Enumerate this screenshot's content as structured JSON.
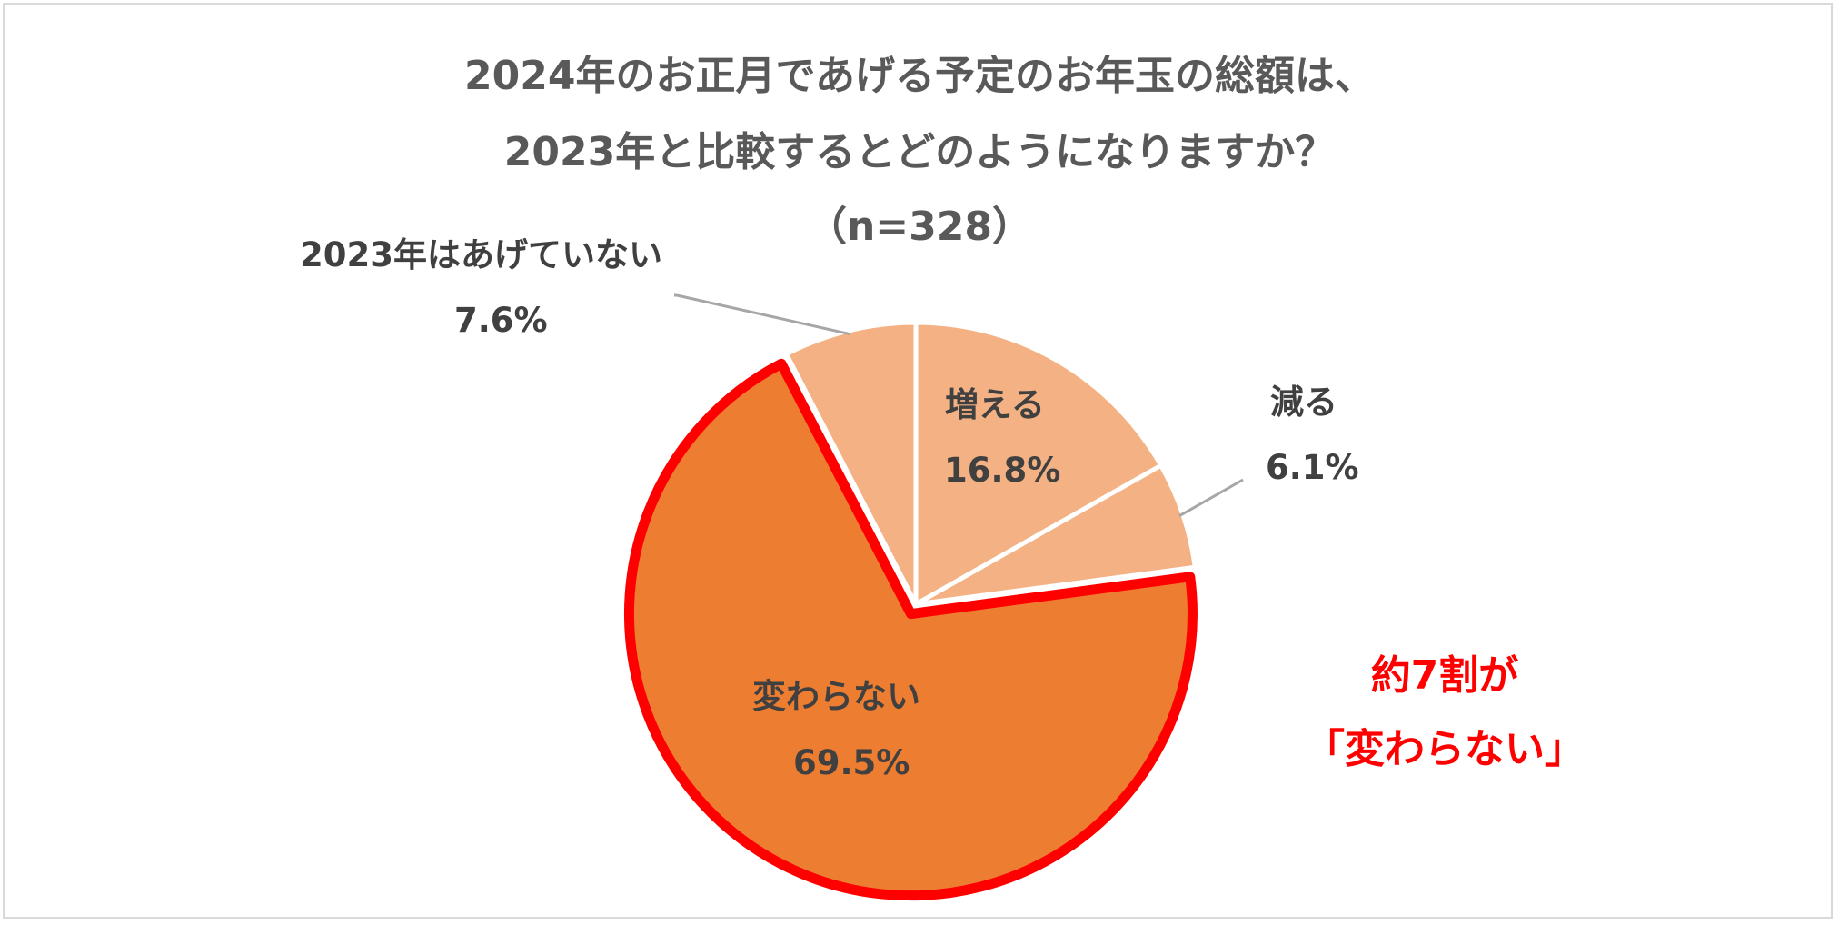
{
  "chart_data": {
    "type": "pie",
    "title_lines": [
      "2024年のお正月であげる予定のお年玉の総額は、",
      "2023年と比較するとどのようになりますか？",
      "（n=328）"
    ],
    "slices": [
      {
        "name": "増える",
        "value": 16.8,
        "value_label": "16.8%",
        "color": "#f4b183",
        "highlight": false
      },
      {
        "name": "減る",
        "value": 6.1,
        "value_label": "6.1%",
        "color": "#f4b183",
        "highlight": false
      },
      {
        "name": "変わらない",
        "value": 69.5,
        "value_label": "69.5%",
        "color": "#ed7d31",
        "highlight": true
      },
      {
        "name": "2023年はあげていない",
        "value": 7.6,
        "value_label": "7.6%",
        "color": "#f4b183",
        "highlight": false
      }
    ],
    "start": "12 o'clock, clockwise",
    "highlight_stroke_color": "#ff0000",
    "leader_line_color": "#a6a6a6",
    "callout_lines": [
      "約7割が",
      "「変わらない」"
    ],
    "callout_color": "#ff0000"
  }
}
